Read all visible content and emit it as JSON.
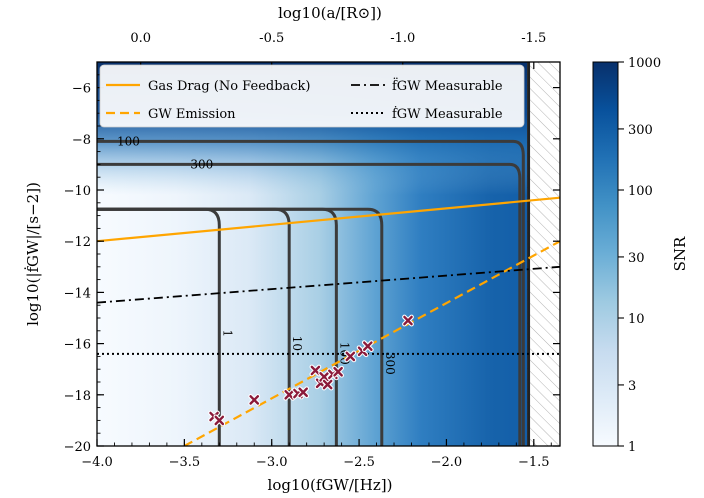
{
  "chart_data": {
    "type": "heatmap",
    "xlabel": "log10(fGW/[Hz])",
    "ylabel": "log10(|ḟGW|/[s−2])",
    "top_xlabel": "log10(a/[R⊙])",
    "xlim": [
      -4.0,
      -1.35
    ],
    "ylim": [
      -20,
      -5
    ],
    "x_ticks": [
      -4.0,
      -3.5,
      -3.0,
      -2.5,
      -2.0,
      -1.5
    ],
    "x_tick_labels": [
      "−4.0",
      "−3.5",
      "−3.0",
      "−2.5",
      "−2.0",
      "−1.5"
    ],
    "y_ticks": [
      -20,
      -18,
      -16,
      -14,
      -12,
      -10,
      -8,
      -6
    ],
    "y_tick_labels": [
      "−20",
      "−18",
      "−16",
      "−14",
      "−12",
      "−10",
      "−8",
      "−6"
    ],
    "top_ticks": [
      {
        "label": "0.0",
        "x": -3.75
      },
      {
        "label": "-0.5",
        "x": -3.0
      },
      {
        "label": "-1.0",
        "x": -2.25
      },
      {
        "label": "-1.5",
        "x": -1.5
      }
    ],
    "colorbar": {
      "label": "SNR",
      "scale": "log",
      "range": [
        1,
        1000
      ],
      "ticks": [
        "1",
        "3",
        "10",
        "30",
        "100",
        "300",
        "1000"
      ],
      "tick_values": [
        1,
        3,
        10,
        30,
        100,
        300,
        1000
      ],
      "colormap": [
        "#f7fbff",
        "#deebf7",
        "#c6dbef",
        "#9ecae1",
        "#6baed6",
        "#4292c6",
        "#2171b5",
        "#08519c",
        "#08306b"
      ]
    },
    "excluded_region": {
      "x_from": -1.53,
      "pattern": "hatched"
    },
    "snr_contours": [
      {
        "level": "1",
        "x_vertical": -3.3
      },
      {
        "level": "10",
        "x_vertical": -2.9
      },
      {
        "level": "100",
        "x_vertical": -2.63
      },
      {
        "level": "300",
        "x_vertical": -2.37
      }
    ],
    "snr_contour_top_labels": [
      {
        "label": "100",
        "x": -3.82,
        "y": -8.1
      },
      {
        "label": "300",
        "x": -3.4,
        "y": -9.0
      }
    ],
    "series": [
      {
        "name": "Gas Drag (No Feedback)",
        "style": "solid",
        "color": "#ffa500",
        "x": [
          -4.0,
          -1.35
        ],
        "y": [
          -12.0,
          -10.3
        ]
      },
      {
        "name": "GW Emission",
        "style": "dashed",
        "color": "#ffa500",
        "x": [
          -3.5,
          -1.35
        ],
        "y": [
          -20.0,
          -12.0
        ]
      },
      {
        "name": "f̈GW Measurable",
        "style": "dashdot",
        "color": "#000000",
        "x": [
          -4.0,
          -1.35
        ],
        "y": [
          -14.4,
          -13.0
        ]
      },
      {
        "name": "ḟGW Measurable",
        "style": "dotted",
        "color": "#000000",
        "x": [
          -4.0,
          -1.35
        ],
        "y": [
          -16.4,
          -16.4
        ]
      }
    ],
    "scatter_points": [
      {
        "x": -3.33,
        "y": -18.85
      },
      {
        "x": -3.3,
        "y": -19.0
      },
      {
        "x": -3.1,
        "y": -18.2
      },
      {
        "x": -2.9,
        "y": -18.0
      },
      {
        "x": -2.85,
        "y": -17.95
      },
      {
        "x": -2.82,
        "y": -17.9
      },
      {
        "x": -2.75,
        "y": -17.05
      },
      {
        "x": -2.72,
        "y": -17.55
      },
      {
        "x": -2.7,
        "y": -17.3
      },
      {
        "x": -2.68,
        "y": -17.6
      },
      {
        "x": -2.65,
        "y": -17.2
      },
      {
        "x": -2.62,
        "y": -17.1
      },
      {
        "x": -2.55,
        "y": -16.5
      },
      {
        "x": -2.48,
        "y": -16.3
      },
      {
        "x": -2.45,
        "y": -16.1
      },
      {
        "x": -2.22,
        "y": -15.1
      }
    ],
    "scatter_color": "#8b1a3a",
    "grid": false,
    "legend": "top, inside plot"
  }
}
